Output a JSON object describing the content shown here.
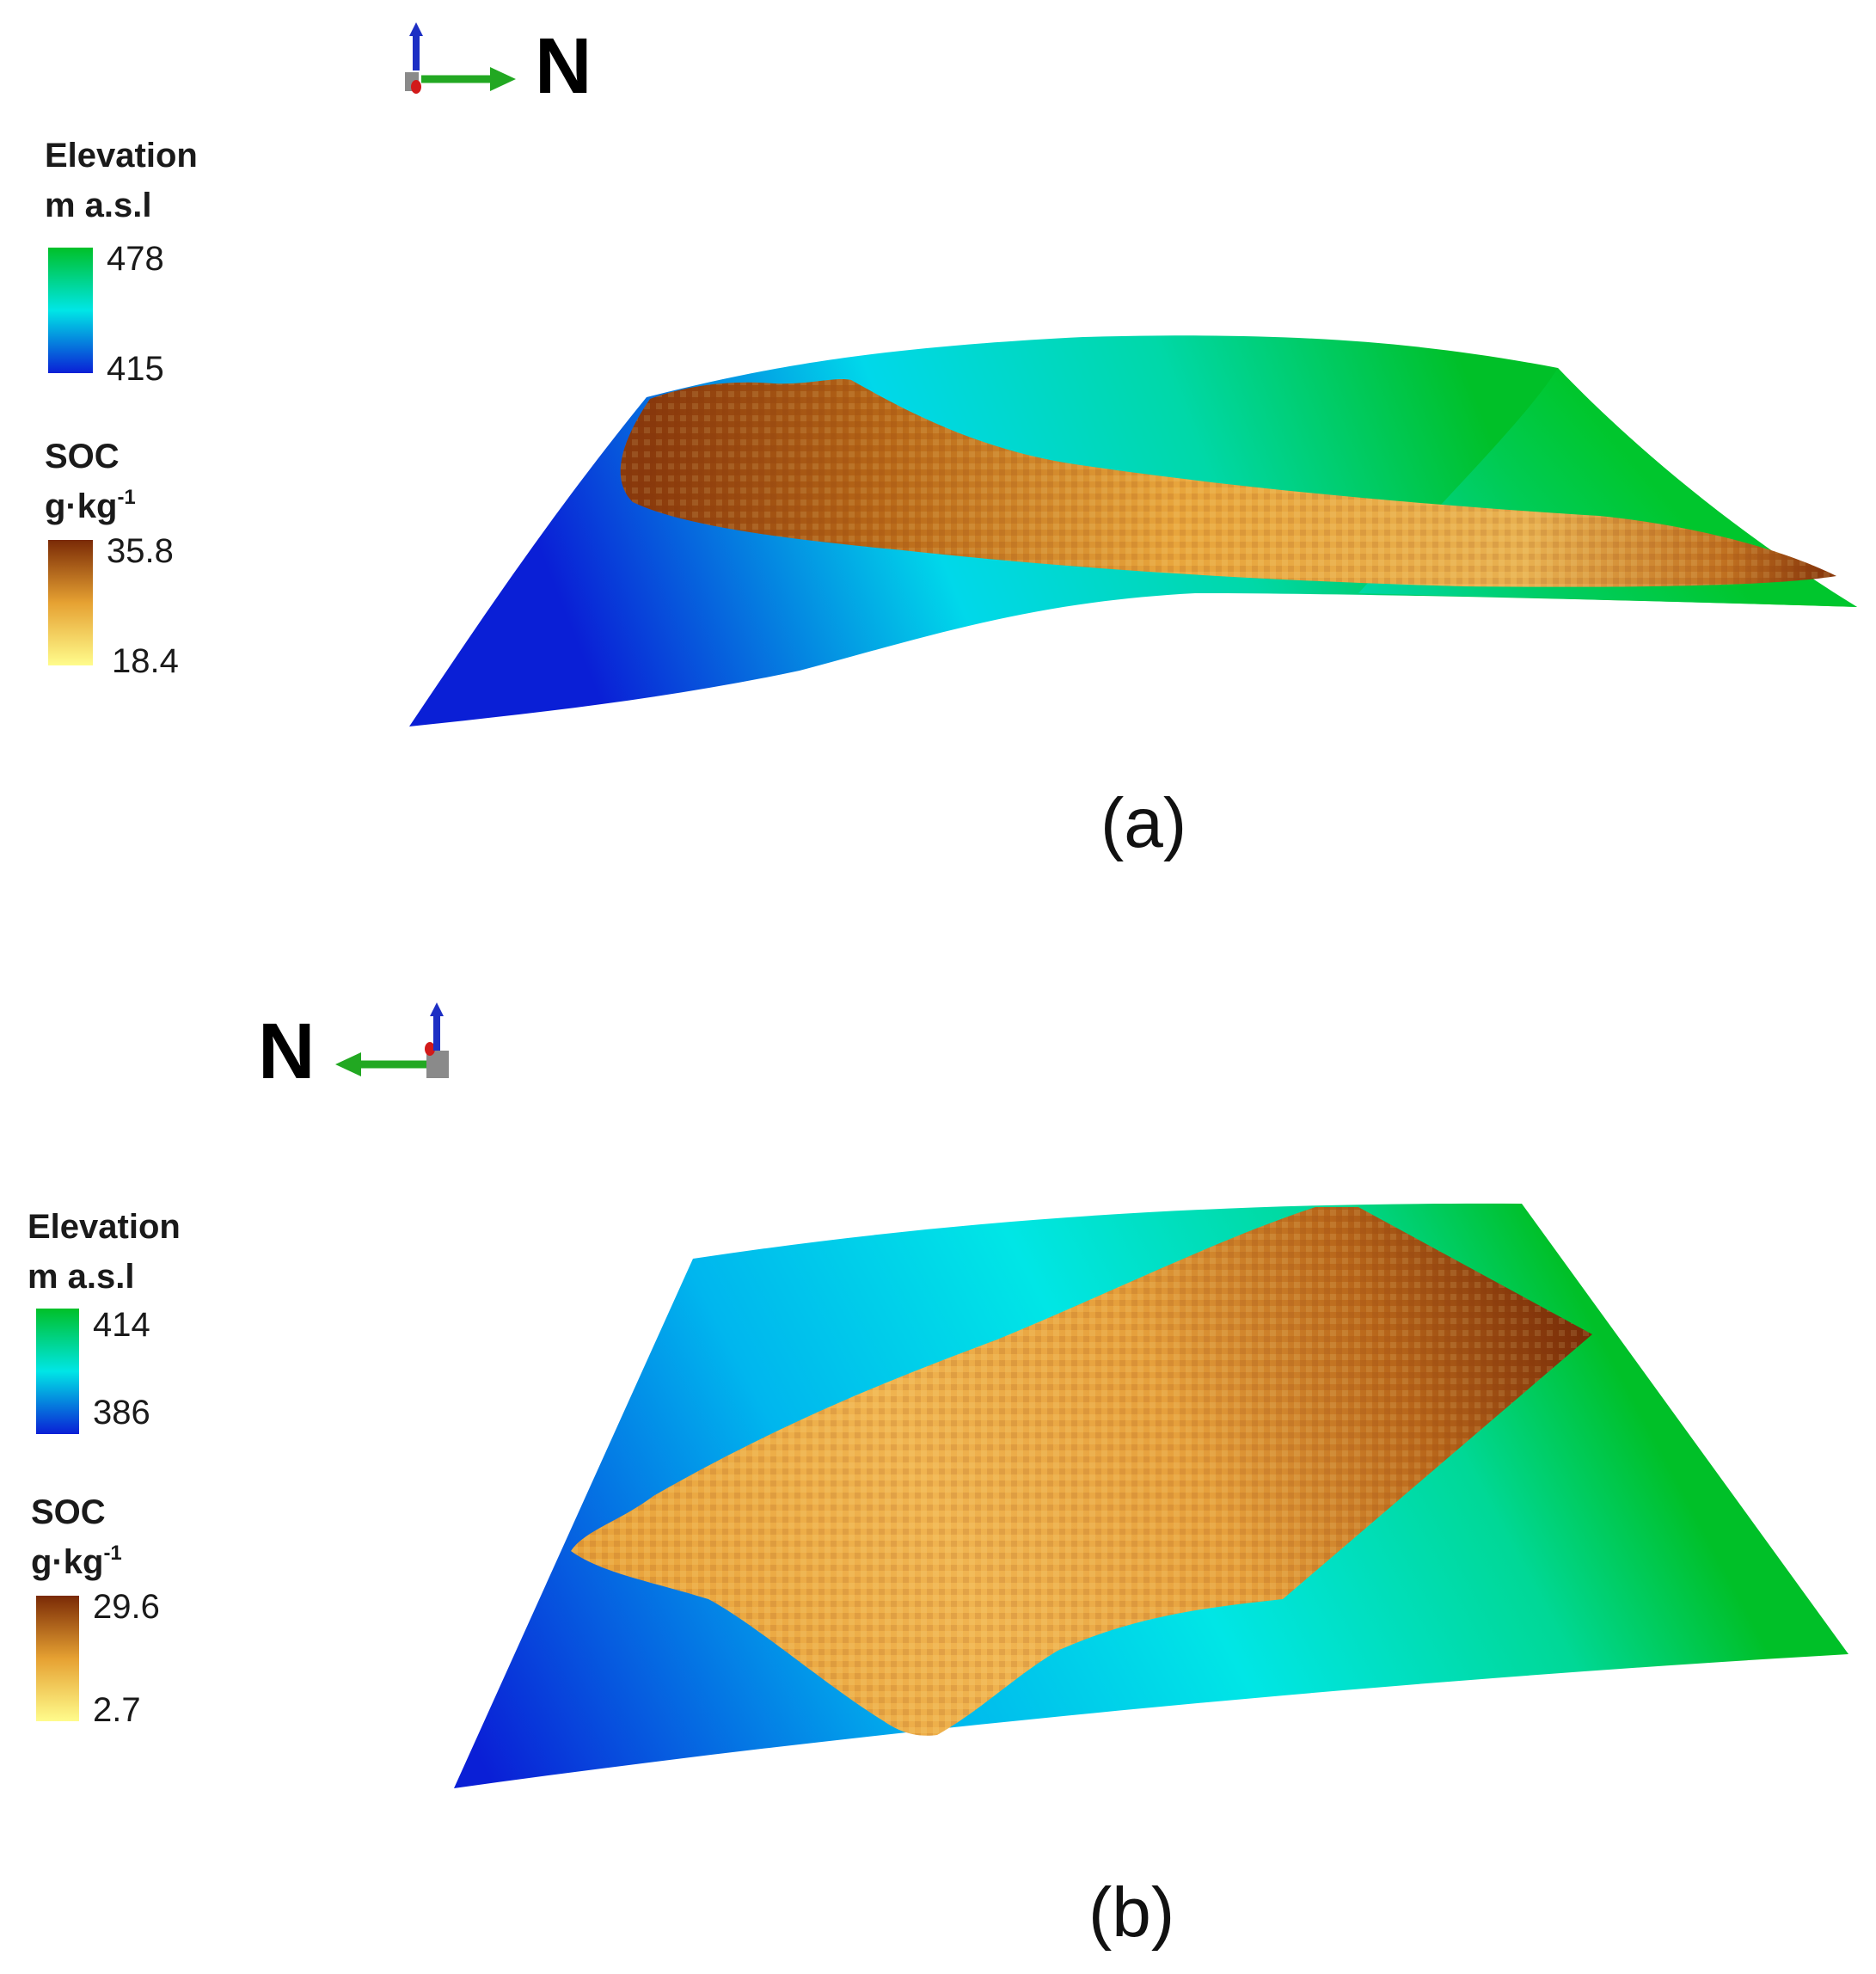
{
  "panels": [
    {
      "id": "a",
      "label": "(a)",
      "north_label": "N",
      "elevation_legend": {
        "title": "Elevation",
        "unit": "m a.s.l",
        "max": "478",
        "min": "415"
      },
      "soc_legend": {
        "title": "SOC",
        "unit_base": "g·kg",
        "unit_exp": "-1",
        "max": "35.8",
        "min": "18.4"
      }
    },
    {
      "id": "b",
      "label": "(b)",
      "north_label": "N",
      "elevation_legend": {
        "title": "Elevation",
        "unit": "m a.s.l",
        "max": "414",
        "min": "386"
      },
      "soc_legend": {
        "title": "SOC",
        "unit_base": "g·kg",
        "unit_exp": "-1",
        "max": "29.6",
        "min": "2.7"
      }
    }
  ],
  "colors": {
    "elevation_high": "#00c028",
    "elevation_mid": "#00e6e6",
    "elevation_low": "#0a1fd6",
    "soc_high": "#7a2a06",
    "soc_mid": "#e6a132",
    "soc_low": "#fffc8c",
    "axis_x": "#22a822",
    "axis_z": "#1d2fc4"
  }
}
